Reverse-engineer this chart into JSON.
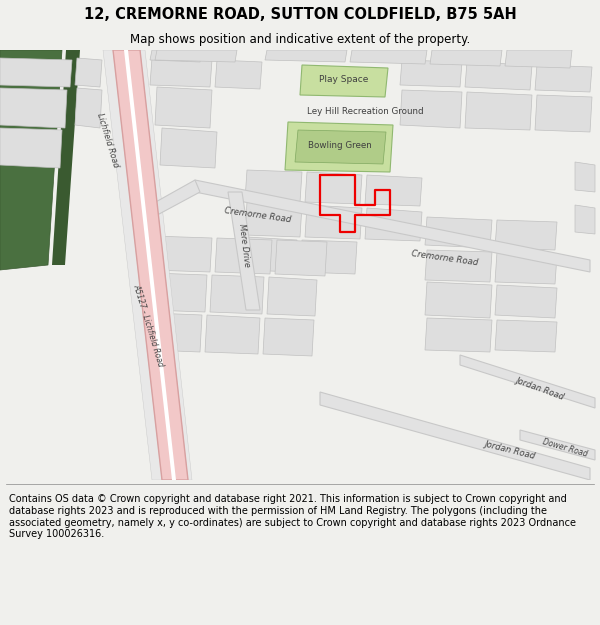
{
  "title": "12, CREMORNE ROAD, SUTTON COLDFIELD, B75 5AH",
  "subtitle": "Map shows position and indicative extent of the property.",
  "footer": "Contains OS data © Crown copyright and database right 2021. This information is subject to Crown copyright and database rights 2023 and is reproduced with the permission of HM Land Registry. The polygons (including the associated geometry, namely x, y co-ordinates) are subject to Crown copyright and database rights 2023 Ordnance Survey 100026316.",
  "bg_color": "#f0f0ed",
  "map_bg": "#ffffff",
  "road_color": "#e2e2e2",
  "road_ec": "#c8c8c8",
  "green_light": "#c8dfa0",
  "green_mid": "#b0cc88",
  "green_dark": "#4a7040",
  "pink_road": "#f2c8c8",
  "pink_road_ec": "#d8a0a0",
  "building_fc": "#dedede",
  "building_ec": "#c0c0c0",
  "property_color": "#ee0000",
  "title_fontsize": 10.5,
  "subtitle_fontsize": 8.5,
  "footer_fontsize": 7.0
}
